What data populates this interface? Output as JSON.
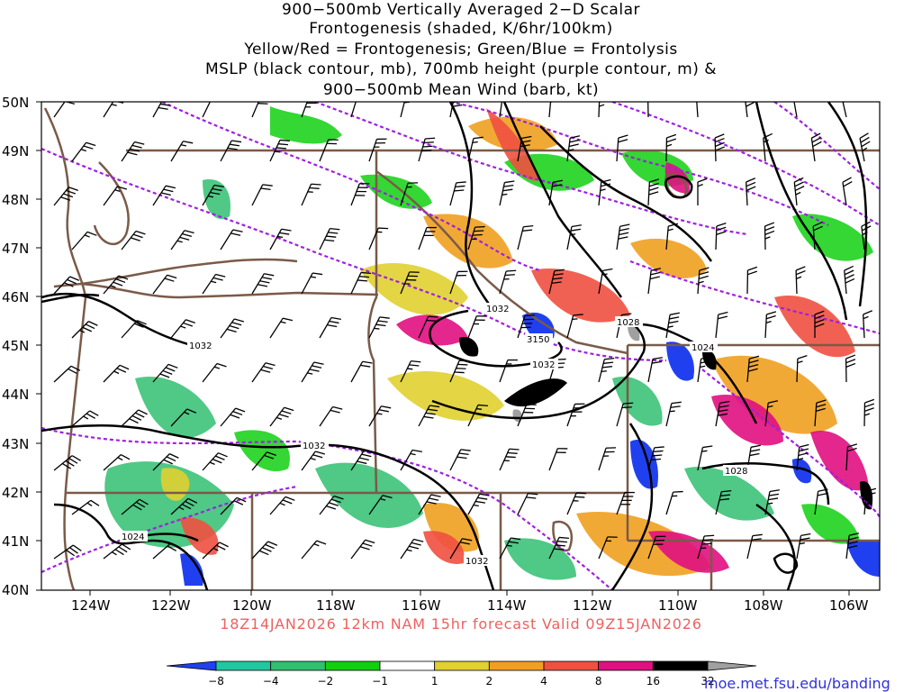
{
  "title": {
    "line1": "900−500mb Vertically Averaged 2−D Scalar",
    "line2": "Frontogenesis (shaded, K/6hr/100km)",
    "line3": "Yellow/Red = Frontogenesis;  Green/Blue = Frontolysis",
    "line4": "MSLP (black contour, mb), 700mb height (purple contour, m) &",
    "line5": "900−500mb Mean Wind (barb, kt)"
  },
  "lat_labels": [
    "50N",
    "49N",
    "48N",
    "47N",
    "46N",
    "45N",
    "44N",
    "43N",
    "42N",
    "41N",
    "40N"
  ],
  "lon_labels": [
    "124W",
    "122W",
    "120W",
    "118W",
    "116W",
    "114W",
    "112W",
    "110W",
    "108W",
    "106W"
  ],
  "contour_labels": [
    {
      "text": "1032"
    },
    {
      "text": "3150"
    },
    {
      "text": "1032"
    },
    {
      "text": "1032"
    },
    {
      "text": "1028"
    },
    {
      "text": "1024"
    },
    {
      "text": "1032"
    },
    {
      "text": "1028"
    },
    {
      "text": "1024"
    },
    {
      "text": "1032"
    }
  ],
  "valid_time": "18Z14JAN2026 12km NAM 15hr forecast Valid 09Z15JAN2026",
  "credit": "moe.met.fsu.edu/banding",
  "colorbar": {
    "ticks": [
      "−8",
      "−4",
      "−2",
      "−1",
      "1",
      "2",
      "4",
      "8",
      "16",
      "32"
    ],
    "colors": [
      "#2040f0",
      "#20c8a0",
      "#30c070",
      "#10d010",
      "#ffffff",
      "#e0d030",
      "#f0a020",
      "#f05040",
      "#e01080",
      "#000000",
      "#a0a0a0"
    ]
  },
  "colors": {
    "pressure_contour": "#000000",
    "height_contour": "#a020e0",
    "border": "#7a5a48",
    "valid_text": "#f06060",
    "credit_text": "#3030e0"
  }
}
